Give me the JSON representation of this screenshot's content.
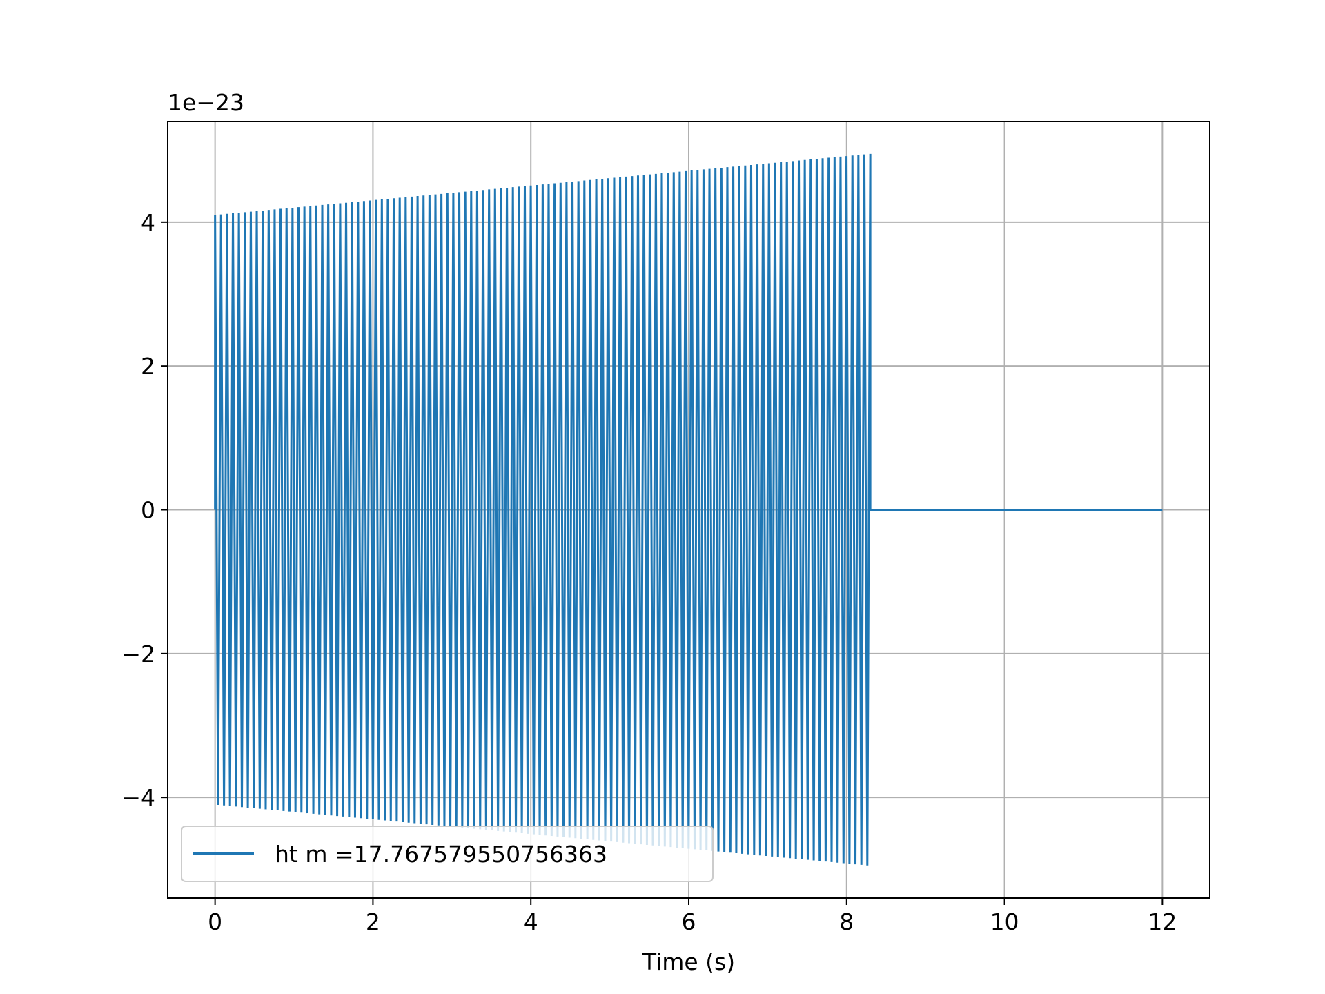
{
  "chart_data": {
    "type": "line",
    "title": "",
    "xlabel": "Time (s)",
    "ylabel": "",
    "y_offset_label": "1e−23",
    "xlim": [
      -0.6,
      12.6
    ],
    "ylim": [
      -5.4,
      5.4
    ],
    "x_ticks": [
      0,
      2,
      4,
      6,
      8,
      10,
      12
    ],
    "x_tick_labels": [
      "0",
      "2",
      "4",
      "6",
      "8",
      "10",
      "12"
    ],
    "y_ticks": [
      -4,
      -2,
      0,
      2,
      4
    ],
    "y_tick_labels": [
      "−4",
      "−2",
      "0",
      "2",
      "4"
    ],
    "grid": true,
    "legend_position": "lower-left",
    "series": [
      {
        "name": "ht m =17.767579550756363",
        "color": "#1f77b4",
        "signal": {
          "start_time": 0,
          "end_time": 8.3,
          "record_end_time": 12,
          "cycles": 110,
          "amplitude_start": 4.1,
          "amplitude_end": 4.95,
          "amplitude_after": 0
        }
      }
    ]
  }
}
